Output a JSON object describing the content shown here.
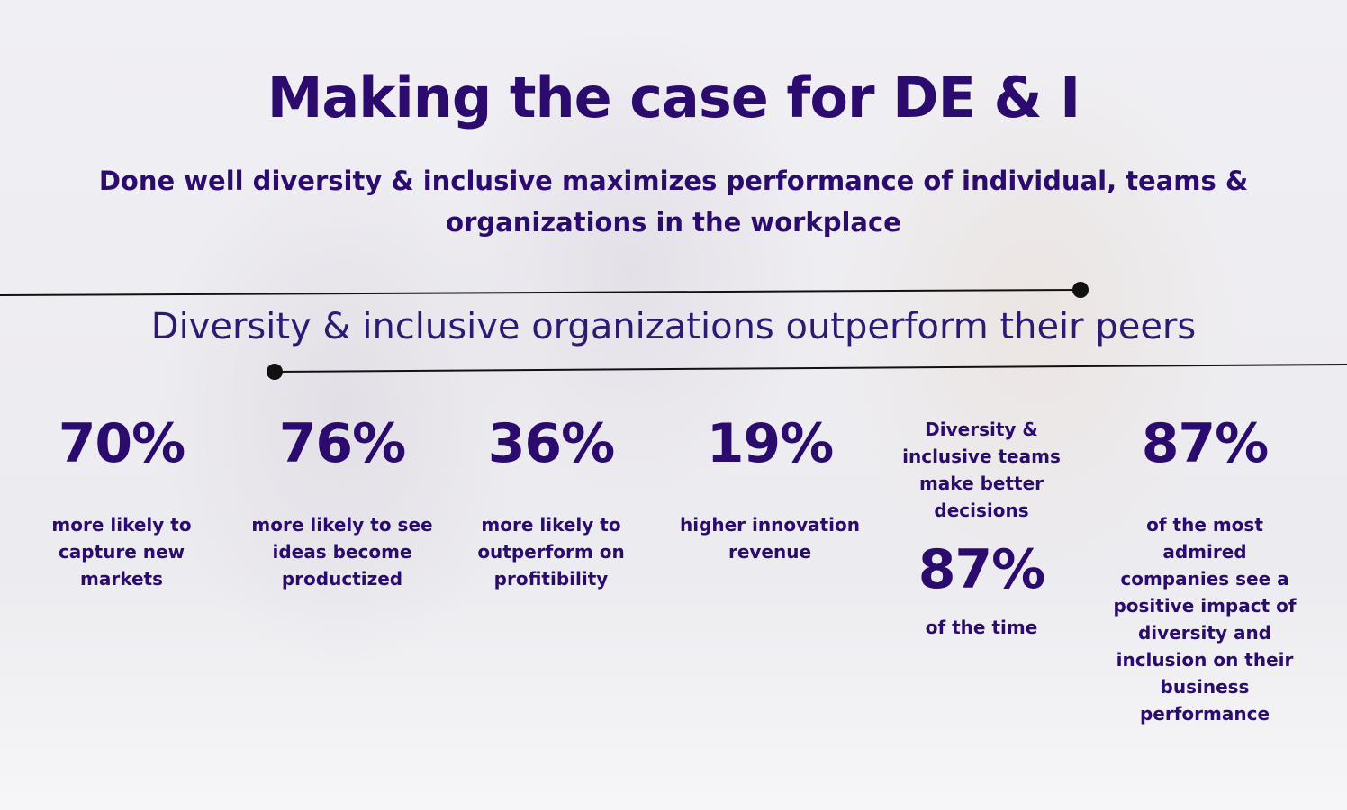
{
  "header": {
    "title": "Making the case for DE & I",
    "subtitle": "Done well diversity & inclusive maximizes performance of individual, teams & organizations in the workplace"
  },
  "section": {
    "heading": "Diversity & inclusive organizations outperform their peers"
  },
  "stats": [
    {
      "value": "70%",
      "text": "more likely to capture new markets"
    },
    {
      "value": "76%",
      "text": "more likely to see ideas become productized"
    },
    {
      "value": "36%",
      "text": "more likely to outperform on profitibility"
    },
    {
      "value": "19%",
      "text": "higher innovation revenue"
    },
    {
      "lead": "Diversity & inclusive teams make better decisions",
      "value": "87%",
      "text": "of the time"
    },
    {
      "value": "87%",
      "text": "of the most admired companies see a positive impact of diversity and inclusion on their business performance"
    }
  ]
}
